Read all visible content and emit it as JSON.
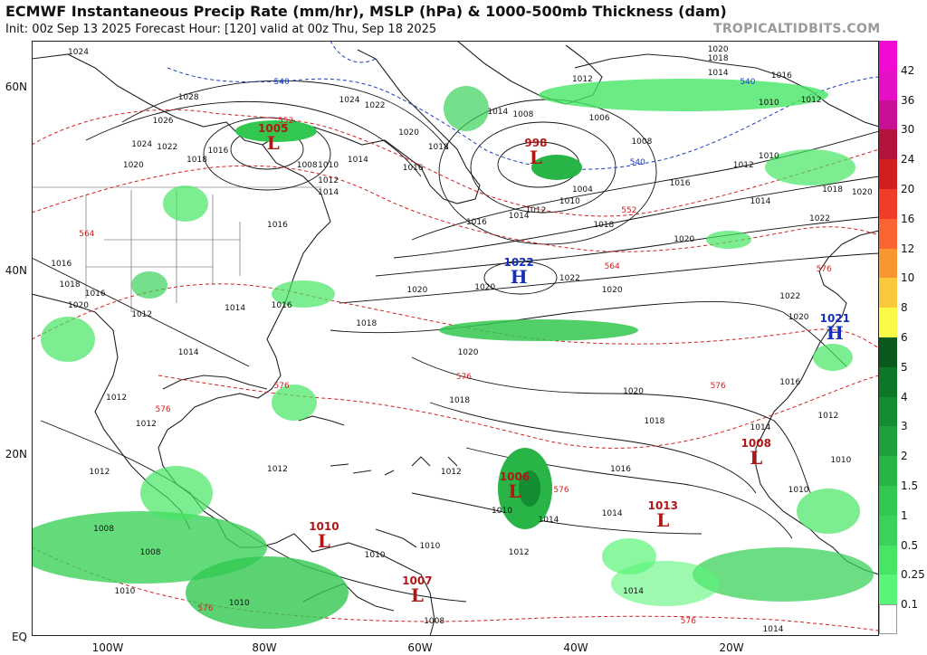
{
  "header": {
    "title": "ECMWF Instantaneous Precip Rate (mm/hr), MSLP (hPa) & 1000-500mb Thickness (dam)",
    "subtitle": "Init: 00z Sep 13 2025   Forecast Hour: [120]   valid at 00z Thu, Sep 18 2025",
    "watermark": "TROPICALTIDBITS.COM"
  },
  "axes": {
    "lat_labels": [
      "60N",
      "40N",
      "20N",
      "EQ"
    ],
    "lon_labels": [
      "100W",
      "80W",
      "60W",
      "40W",
      "20W"
    ]
  },
  "colorbar": {
    "labels": [
      "42",
      "36",
      "30",
      "24",
      "20",
      "16",
      "12",
      "10",
      "8",
      "6",
      "5",
      "4",
      "3",
      "2",
      "1.5",
      "1",
      "0.5",
      "0.25",
      "0.1"
    ],
    "colors": [
      "#f00ad2",
      "#e60fc8",
      "#c81096",
      "#b4143c",
      "#d21e1e",
      "#f03c28",
      "#fa6432",
      "#fa9632",
      "#fac83c",
      "#fafa46",
      "#0a5a1e",
      "#0f7828",
      "#148c32",
      "#1ea03c",
      "#28b446",
      "#32c850",
      "#3cd25a",
      "#46e664",
      "#5af578",
      "#ffffff"
    ]
  },
  "pressure_centers": [
    {
      "type": "L",
      "value": "1005",
      "x_pct": 28.5,
      "y_pct": 16.5
    },
    {
      "type": "L",
      "value": "998",
      "x_pct": 59.5,
      "y_pct": 19.0
    },
    {
      "type": "H",
      "value": "1022",
      "x_pct": 57.5,
      "y_pct": 39.0
    },
    {
      "type": "H",
      "value": "1021",
      "x_pct": 94.8,
      "y_pct": 48.5
    },
    {
      "type": "L",
      "value": "1008",
      "x_pct": 85.5,
      "y_pct": 69.5
    },
    {
      "type": "L",
      "value": "1006",
      "x_pct": 57.0,
      "y_pct": 75.0
    },
    {
      "type": "L",
      "value": "1013",
      "x_pct": 74.5,
      "y_pct": 80.0
    },
    {
      "type": "L",
      "value": "1010",
      "x_pct": 34.5,
      "y_pct": 83.5
    },
    {
      "type": "L",
      "value": "1007",
      "x_pct": 45.5,
      "y_pct": 92.5
    }
  ],
  "isobar_labels": [
    {
      "text": "1024",
      "x_pct": 5.5,
      "y_pct": 2.0
    },
    {
      "text": "1028",
      "x_pct": 18.5,
      "y_pct": 9.5
    },
    {
      "text": "1026",
      "x_pct": 15.5,
      "y_pct": 13.5
    },
    {
      "text": "1024",
      "x_pct": 13.0,
      "y_pct": 17.5
    },
    {
      "text": "1022",
      "x_pct": 16.0,
      "y_pct": 18.0
    },
    {
      "text": "1020",
      "x_pct": 12.0,
      "y_pct": 21.0
    },
    {
      "text": "1018",
      "x_pct": 19.5,
      "y_pct": 20.0
    },
    {
      "text": "1016",
      "x_pct": 22.0,
      "y_pct": 18.5
    },
    {
      "text": "1008",
      "x_pct": 32.5,
      "y_pct": 21.0
    },
    {
      "text": "1010",
      "x_pct": 35.0,
      "y_pct": 21.0
    },
    {
      "text": "1012",
      "x_pct": 35.0,
      "y_pct": 23.5
    },
    {
      "text": "1014",
      "x_pct": 35.0,
      "y_pct": 25.5
    },
    {
      "text": "1016",
      "x_pct": 45.0,
      "y_pct": 21.5
    },
    {
      "text": "1014",
      "x_pct": 38.5,
      "y_pct": 20.0
    },
    {
      "text": "1024",
      "x_pct": 37.5,
      "y_pct": 10.0
    },
    {
      "text": "1022",
      "x_pct": 40.5,
      "y_pct": 11.0
    },
    {
      "text": "1020",
      "x_pct": 44.5,
      "y_pct": 15.5
    },
    {
      "text": "1018",
      "x_pct": 48.0,
      "y_pct": 18.0
    },
    {
      "text": "1016",
      "x_pct": 52.5,
      "y_pct": 30.5
    },
    {
      "text": "1014",
      "x_pct": 57.5,
      "y_pct": 29.5
    },
    {
      "text": "1012",
      "x_pct": 59.5,
      "y_pct": 28.5
    },
    {
      "text": "1010",
      "x_pct": 63.5,
      "y_pct": 27.0
    },
    {
      "text": "1004",
      "x_pct": 65.0,
      "y_pct": 25.0
    },
    {
      "text": "1006",
      "x_pct": 67.0,
      "y_pct": 13.0
    },
    {
      "text": "1008",
      "x_pct": 72.0,
      "y_pct": 17.0
    },
    {
      "text": "1012",
      "x_pct": 65.0,
      "y_pct": 6.5
    },
    {
      "text": "1014",
      "x_pct": 55.0,
      "y_pct": 12.0
    },
    {
      "text": "1008",
      "x_pct": 58.0,
      "y_pct": 12.5
    },
    {
      "text": "1018",
      "x_pct": 67.5,
      "y_pct": 31.0
    },
    {
      "text": "1016",
      "x_pct": 76.5,
      "y_pct": 24.0
    },
    {
      "text": "1012",
      "x_pct": 84.0,
      "y_pct": 21.0
    },
    {
      "text": "1010",
      "x_pct": 87.0,
      "y_pct": 19.5
    },
    {
      "text": "1014",
      "x_pct": 86.0,
      "y_pct": 27.0
    },
    {
      "text": "1020",
      "x_pct": 77.0,
      "y_pct": 33.5
    },
    {
      "text": "1022",
      "x_pct": 93.0,
      "y_pct": 30.0
    },
    {
      "text": "1018",
      "x_pct": 94.5,
      "y_pct": 25.0
    },
    {
      "text": "1020",
      "x_pct": 98.0,
      "y_pct": 25.5
    },
    {
      "text": "1022",
      "x_pct": 89.5,
      "y_pct": 43.0
    },
    {
      "text": "1020",
      "x_pct": 90.5,
      "y_pct": 46.5
    },
    {
      "text": "1020",
      "x_pct": 81.0,
      "y_pct": 1.5
    },
    {
      "text": "1018",
      "x_pct": 81.0,
      "y_pct": 3.0
    },
    {
      "text": "1014",
      "x_pct": 81.0,
      "y_pct": 5.5
    },
    {
      "text": "1016",
      "x_pct": 88.5,
      "y_pct": 6.0
    },
    {
      "text": "1012",
      "x_pct": 92.0,
      "y_pct": 10.0
    },
    {
      "text": "1010",
      "x_pct": 87.0,
      "y_pct": 10.5
    },
    {
      "text": "1020",
      "x_pct": 53.5,
      "y_pct": 41.5
    },
    {
      "text": "1022",
      "x_pct": 63.5,
      "y_pct": 40.0
    },
    {
      "text": "1020",
      "x_pct": 45.5,
      "y_pct": 42.0
    },
    {
      "text": "1020",
      "x_pct": 68.5,
      "y_pct": 42.0
    },
    {
      "text": "1018",
      "x_pct": 39.5,
      "y_pct": 47.5
    },
    {
      "text": "1020",
      "x_pct": 51.5,
      "y_pct": 52.5
    },
    {
      "text": "1018",
      "x_pct": 50.5,
      "y_pct": 60.5
    },
    {
      "text": "1020",
      "x_pct": 71.0,
      "y_pct": 59.0
    },
    {
      "text": "1018",
      "x_pct": 73.5,
      "y_pct": 64.0
    },
    {
      "text": "1016",
      "x_pct": 69.5,
      "y_pct": 72.0
    },
    {
      "text": "1016",
      "x_pct": 89.5,
      "y_pct": 57.5
    },
    {
      "text": "1014",
      "x_pct": 86.0,
      "y_pct": 65.0
    },
    {
      "text": "1012",
      "x_pct": 94.0,
      "y_pct": 63.0
    },
    {
      "text": "1010",
      "x_pct": 95.5,
      "y_pct": 70.5
    },
    {
      "text": "1010",
      "x_pct": 90.5,
      "y_pct": 75.5
    },
    {
      "text": "1012",
      "x_pct": 49.5,
      "y_pct": 72.5
    },
    {
      "text": "1014",
      "x_pct": 61.0,
      "y_pct": 80.5
    },
    {
      "text": "1014",
      "x_pct": 68.5,
      "y_pct": 79.5
    },
    {
      "text": "1010",
      "x_pct": 55.5,
      "y_pct": 79.0
    },
    {
      "text": "1012",
      "x_pct": 57.5,
      "y_pct": 86.0
    },
    {
      "text": "1010",
      "x_pct": 40.5,
      "y_pct": 86.5
    },
    {
      "text": "1014",
      "x_pct": 71.0,
      "y_pct": 92.5
    },
    {
      "text": "1014",
      "x_pct": 87.5,
      "y_pct": 99.0
    },
    {
      "text": "1016",
      "x_pct": 3.5,
      "y_pct": 37.5
    },
    {
      "text": "1018",
      "x_pct": 4.5,
      "y_pct": 41.0
    },
    {
      "text": "1016",
      "x_pct": 7.5,
      "y_pct": 42.5
    },
    {
      "text": "1020",
      "x_pct": 5.5,
      "y_pct": 44.5
    },
    {
      "text": "1012",
      "x_pct": 13.0,
      "y_pct": 46.0
    },
    {
      "text": "1014",
      "x_pct": 18.5,
      "y_pct": 52.5
    },
    {
      "text": "1014",
      "x_pct": 24.0,
      "y_pct": 45.0
    },
    {
      "text": "1016",
      "x_pct": 29.0,
      "y_pct": 31.0
    },
    {
      "text": "1016",
      "x_pct": 29.5,
      "y_pct": 44.5
    },
    {
      "text": "1012",
      "x_pct": 10.0,
      "y_pct": 60.0
    },
    {
      "text": "1012",
      "x_pct": 13.5,
      "y_pct": 64.5
    },
    {
      "text": "1012",
      "x_pct": 8.0,
      "y_pct": 72.5
    },
    {
      "text": "1012",
      "x_pct": 29.0,
      "y_pct": 72.0
    },
    {
      "text": "1008",
      "x_pct": 8.5,
      "y_pct": 82.0
    },
    {
      "text": "1010",
      "x_pct": 11.0,
      "y_pct": 92.5
    },
    {
      "text": "1010",
      "x_pct": 24.5,
      "y_pct": 94.5
    },
    {
      "text": "1010",
      "x_pct": 47.0,
      "y_pct": 85.0
    },
    {
      "text": "1008",
      "x_pct": 47.5,
      "y_pct": 97.5
    },
    {
      "text": "1008",
      "x_pct": 14.0,
      "y_pct": 86.0
    }
  ],
  "thickness_labels": [
    {
      "text": "540",
      "color": "blue",
      "x_pct": 29.5,
      "y_pct": 7.0
    },
    {
      "text": "540",
      "color": "blue",
      "x_pct": 71.5,
      "y_pct": 20.5
    },
    {
      "text": "540",
      "color": "blue",
      "x_pct": 84.5,
      "y_pct": 7.0
    },
    {
      "text": "552",
      "color": "red",
      "x_pct": 30.0,
      "y_pct": 13.5
    },
    {
      "text": "552",
      "color": "red",
      "x_pct": 70.5,
      "y_pct": 28.5
    },
    {
      "text": "564",
      "color": "red",
      "x_pct": 6.5,
      "y_pct": 32.5
    },
    {
      "text": "564",
      "color": "red",
      "x_pct": 68.5,
      "y_pct": 38.0
    },
    {
      "text": "576",
      "color": "red",
      "x_pct": 15.5,
      "y_pct": 62.0
    },
    {
      "text": "576",
      "color": "red",
      "x_pct": 51.0,
      "y_pct": 56.5
    },
    {
      "text": "576",
      "color": "red",
      "x_pct": 81.0,
      "y_pct": 58.0
    },
    {
      "text": "576",
      "color": "red",
      "x_pct": 93.5,
      "y_pct": 38.5
    },
    {
      "text": "576",
      "color": "red",
      "x_pct": 62.5,
      "y_pct": 75.5
    },
    {
      "text": "576",
      "color": "red",
      "x_pct": 20.5,
      "y_pct": 95.5
    },
    {
      "text": "576",
      "color": "red",
      "x_pct": 77.5,
      "y_pct": 97.5
    },
    {
      "text": "576",
      "color": "red",
      "x_pct": 29.5,
      "y_pct": 58.0
    }
  ]
}
